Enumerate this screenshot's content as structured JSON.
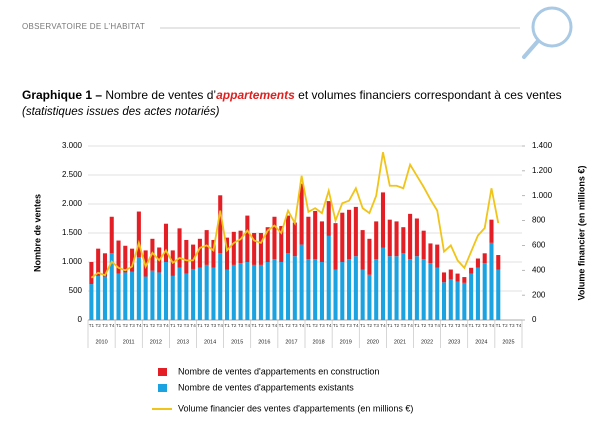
{
  "header": "OBSERVATOIRE DE L’HABITAT",
  "chart_data": {
    "type": "bar",
    "title": {
      "label": "Graphique 1 –",
      "before": "Nombre de ventes d’",
      "emphasis": "appartements",
      "after": "et volumes financiers correspondant à ces ventes"
    },
    "subtitle": "(statistiques issues des actes notariés)",
    "ylabel": "Nombre de ventes",
    "y2label": "Volume financier (en millions €)",
    "categories": [
      "T1",
      "T2",
      "T3",
      "T4",
      "T1",
      "T2",
      "T3",
      "T4",
      "T1",
      "T2",
      "T3",
      "T4",
      "T1",
      "T2",
      "T3",
      "T4",
      "T1",
      "T2",
      "T3",
      "T4",
      "T1",
      "T2",
      "T3",
      "T4",
      "T1",
      "T2",
      "T3",
      "T4",
      "T1",
      "T2",
      "T3",
      "T4",
      "T1",
      "T2",
      "T3",
      "T4",
      "T1",
      "T2",
      "T3",
      "T4",
      "T1",
      "T2",
      "T3",
      "T4",
      "T1",
      "T2",
      "T3",
      "T4",
      "T1",
      "T2",
      "T3",
      "T4",
      "T1",
      "T2",
      "T3",
      "T4",
      "T1",
      "T2",
      "T3",
      "T4",
      "T1",
      "T2",
      "T3",
      "T4"
    ],
    "years": [
      "2010",
      "2011",
      "2012",
      "2013",
      "2014",
      "2015",
      "2016",
      "2017",
      "2018",
      "2019",
      "2020",
      "2021",
      "2022",
      "2023",
      "2024",
      "2025"
    ],
    "series": [
      {
        "name": "Nombre de ventes d'appartements en construction",
        "color": "#e31e24",
        "values": [
          380,
          470,
          400,
          630,
          570,
          460,
          400,
          790,
          450,
          550,
          430,
          660,
          440,
          680,
          580,
          420,
          500,
          600,
          480,
          1000,
          550,
          570,
          560,
          800,
          550,
          550,
          600,
          730,
          620,
          650,
          580,
          1050,
          730,
          830,
          700,
          600,
          800,
          850,
          850,
          850,
          680,
          620,
          650,
          950,
          630,
          600,
          450,
          780,
          650,
          490,
          340,
          400,
          170,
          170,
          140,
          100,
          100,
          160,
          170,
          400,
          250,
          null,
          null,
          null
        ]
      },
      {
        "name": "Nombre de ventes d'appartements existants",
        "color": "#1aa3e0",
        "values": [
          620,
          760,
          750,
          1150,
          800,
          820,
          830,
          1080,
          750,
          850,
          820,
          1000,
          760,
          900,
          800,
          880,
          900,
          950,
          900,
          1150,
          870,
          950,
          980,
          1000,
          950,
          950,
          1000,
          1050,
          1000,
          1150,
          1100,
          1300,
          1050,
          1050,
          1000,
          1450,
          870,
          1000,
          1050,
          1100,
          870,
          780,
          1050,
          1250,
          1100,
          1100,
          1150,
          1050,
          1100,
          1050,
          980,
          900,
          650,
          700,
          660,
          640,
          800,
          900,
          980,
          1330,
          870,
          null,
          null,
          null
        ]
      },
      {
        "name": "Volume financier des ventes d'appartements (en millions €)",
        "color": "#f0c419",
        "axis": "y2",
        "values": [
          340,
          380,
          360,
          470,
          420,
          400,
          430,
          620,
          430,
          540,
          480,
          560,
          460,
          500,
          480,
          480,
          580,
          600,
          560,
          880,
          560,
          620,
          650,
          720,
          640,
          620,
          720,
          760,
          700,
          880,
          780,
          1160,
          870,
          900,
          860,
          1040,
          800,
          940,
          960,
          1060,
          900,
          860,
          1000,
          1350,
          1080,
          1080,
          1060,
          1250,
          1160,
          1070,
          970,
          880,
          550,
          600,
          480,
          420,
          550,
          680,
          740,
          1060,
          780,
          null,
          null,
          null
        ]
      }
    ],
    "ylim": [
      0,
      3000
    ],
    "yticks": [
      0,
      500,
      {
        "value": 1000,
        "label": "1.000"
      },
      {
        "value": 1500,
        "label": "1.500"
      },
      {
        "value": 2000,
        "label": "2.000"
      },
      {
        "value": 2500,
        "label": "2.500"
      },
      {
        "value": 3000,
        "label": "3.000"
      }
    ],
    "y2lim": [
      0,
      1400
    ],
    "y2ticks": [
      0,
      200,
      400,
      600,
      800,
      {
        "value": 1000,
        "label": "1.000"
      },
      {
        "value": 1200,
        "label": "1.200"
      },
      {
        "value": 1400,
        "label": "1.400"
      }
    ],
    "grid": true,
    "legend": "bottom"
  }
}
